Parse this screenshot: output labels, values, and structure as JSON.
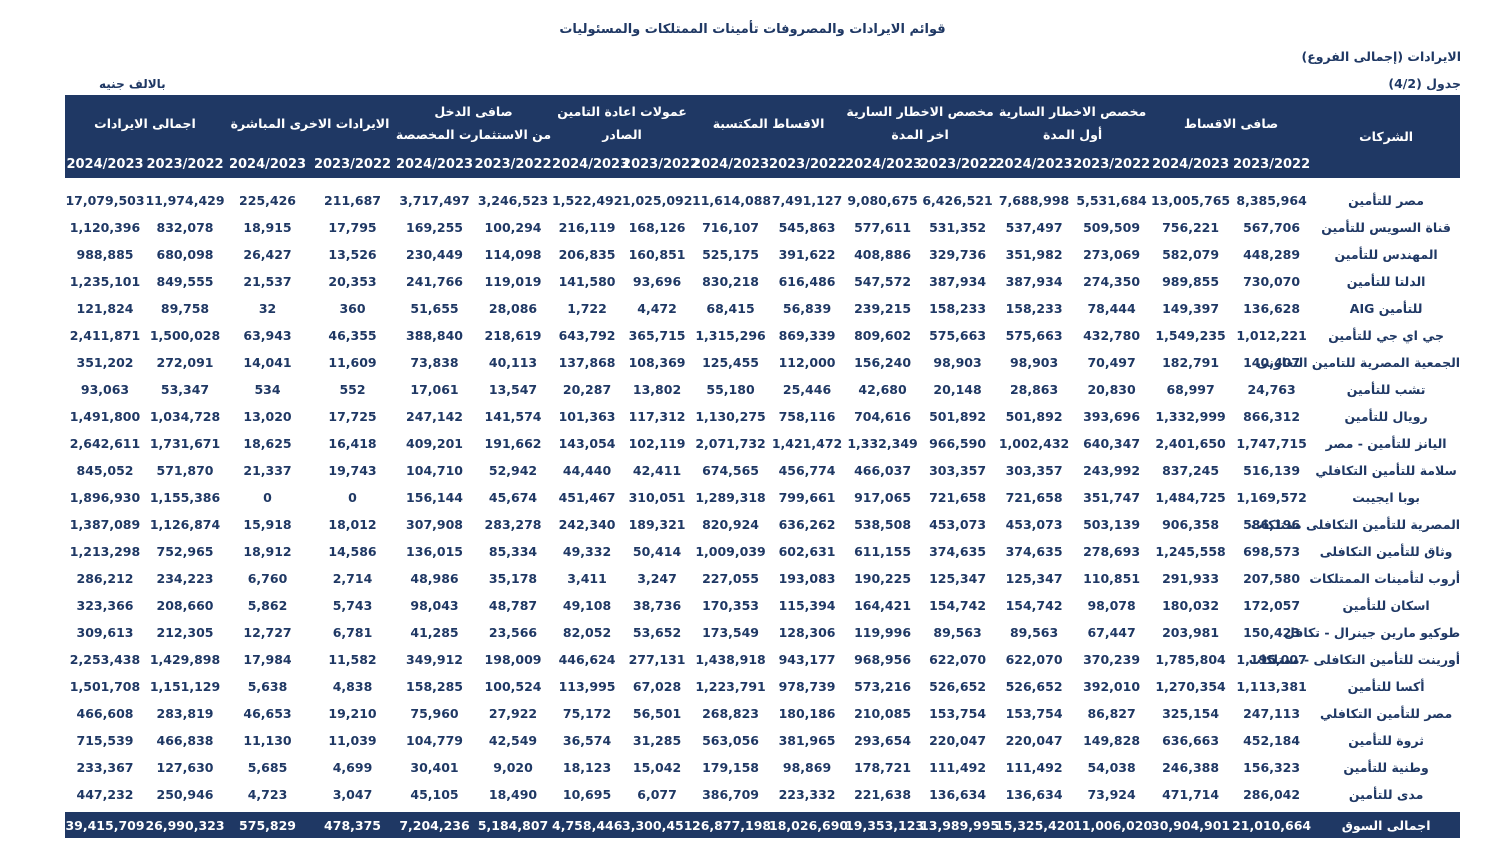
{
  "page": {
    "title": "قوائم الايرادات والمصروفات تأمينات الممتلكات والمسئوليات",
    "revenues_scope_label": "الايرادات (إجمالى الفروع)",
    "table_number_label": "جدول (4/2)",
    "unit_label": "بالالف جنيه"
  },
  "colors": {
    "header_bg": "#1F3864",
    "text": "#1F3864"
  },
  "table": {
    "companies_header": "الشركات",
    "year_columns": [
      "2024/2023",
      "2023/2022"
    ],
    "column_groups": [
      {
        "label": "اجمالى الايرادات",
        "label2": ""
      },
      {
        "label": "الايرادات الاخرى المباشرة",
        "label2": ""
      },
      {
        "label": "صافى الدخل",
        "label2": "من الاستثمارت المخصصة"
      },
      {
        "label": "عمولات اعادة التامين الصادر",
        "label2": ""
      },
      {
        "label": "الاقساط المكتسبة",
        "label2": ""
      },
      {
        "label": "مخصص الاخطار السارية",
        "label2": "اخر المدة"
      },
      {
        "label": "مخصص الاخطار السارية",
        "label2": "أول المدة"
      },
      {
        "label": "صافى الاقساط",
        "label2": ""
      }
    ],
    "rows": [
      {
        "name": "مصر للتأمين",
        "values": [
          "17,079,503",
          "11,974,429",
          "225,426",
          "211,687",
          "3,717,497",
          "3,246,523",
          "1,522,492",
          "1,025,092",
          "11,614,088",
          "7,491,127",
          "9,080,675",
          "6,426,521",
          "7,688,998",
          "5,531,684",
          "13,005,765",
          "8,385,964"
        ]
      },
      {
        "name": "قناة السويس للتأمين",
        "values": [
          "1,120,396",
          "832,078",
          "18,915",
          "17,795",
          "169,255",
          "100,294",
          "216,119",
          "168,126",
          "716,107",
          "545,863",
          "577,611",
          "531,352",
          "537,497",
          "509,509",
          "756,221",
          "567,706"
        ]
      },
      {
        "name": "المهندس للتأمين",
        "values": [
          "988,885",
          "680,098",
          "26,427",
          "13,526",
          "230,449",
          "114,098",
          "206,835",
          "160,851",
          "525,175",
          "391,622",
          "408,886",
          "329,736",
          "351,982",
          "273,069",
          "582,079",
          "448,289"
        ]
      },
      {
        "name": "الدلتا للتأمين",
        "values": [
          "1,235,101",
          "849,555",
          "21,537",
          "20,353",
          "241,766",
          "119,019",
          "141,580",
          "93,696",
          "830,218",
          "616,486",
          "547,572",
          "387,934",
          "387,934",
          "274,350",
          "989,855",
          "730,070"
        ]
      },
      {
        "name": "AIG للتأمين",
        "values": [
          "121,824",
          "89,758",
          "32",
          "360",
          "51,655",
          "28,086",
          "1,722",
          "4,472",
          "68,415",
          "56,839",
          "239,215",
          "158,233",
          "158,233",
          "78,444",
          "149,397",
          "136,628"
        ]
      },
      {
        "name": "جي اي جي للتأمين",
        "values": [
          "2,411,871",
          "1,500,028",
          "63,943",
          "46,355",
          "388,840",
          "218,619",
          "643,792",
          "365,715",
          "1,315,296",
          "869,339",
          "809,602",
          "575,663",
          "575,663",
          "432,780",
          "1,549,235",
          "1,012,221"
        ]
      },
      {
        "name": "الجمعية المصرية للتامين التعاونى",
        "values": [
          "351,202",
          "272,091",
          "14,041",
          "11,609",
          "73,838",
          "40,113",
          "137,868",
          "108,369",
          "125,455",
          "112,000",
          "156,240",
          "98,903",
          "98,903",
          "70,497",
          "182,791",
          "140,407"
        ]
      },
      {
        "name": "تشب للتأمين",
        "values": [
          "93,063",
          "53,347",
          "534",
          "552",
          "17,061",
          "13,547",
          "20,287",
          "13,802",
          "55,180",
          "25,446",
          "42,680",
          "20,148",
          "28,863",
          "20,830",
          "68,997",
          "24,763"
        ]
      },
      {
        "name": "رويال للتأمين",
        "values": [
          "1,491,800",
          "1,034,728",
          "13,020",
          "17,725",
          "247,142",
          "141,574",
          "101,363",
          "117,312",
          "1,130,275",
          "758,116",
          "704,616",
          "501,892",
          "501,892",
          "393,696",
          "1,332,999",
          "866,312"
        ]
      },
      {
        "name": "اليانز للتأمين - مصر",
        "values": [
          "2,642,611",
          "1,731,671",
          "18,625",
          "16,418",
          "409,201",
          "191,662",
          "143,054",
          "102,119",
          "2,071,732",
          "1,421,472",
          "1,332,349",
          "966,590",
          "1,002,432",
          "640,347",
          "2,401,650",
          "1,747,715"
        ]
      },
      {
        "name": "سلامة للتأمين التكافلي",
        "values": [
          "845,052",
          "571,870",
          "21,337",
          "19,743",
          "104,710",
          "52,942",
          "44,440",
          "42,411",
          "674,565",
          "456,774",
          "466,037",
          "303,357",
          "303,357",
          "243,992",
          "837,245",
          "516,139"
        ]
      },
      {
        "name": "بوبا ايجيبت",
        "values": [
          "1,896,930",
          "1,155,386",
          "0",
          "0",
          "156,144",
          "45,674",
          "451,467",
          "310,051",
          "1,289,318",
          "799,661",
          "917,065",
          "721,658",
          "721,658",
          "351,747",
          "1,484,725",
          "1,169,572"
        ]
      },
      {
        "name": "المصرية للتأمين التكافلى ممتلكات",
        "values": [
          "1,387,089",
          "1,126,874",
          "15,918",
          "18,012",
          "307,908",
          "283,278",
          "242,340",
          "189,321",
          "820,924",
          "636,262",
          "538,508",
          "453,073",
          "453,073",
          "503,139",
          "906,358",
          "586,196"
        ]
      },
      {
        "name": "وثاق للتأمين التكافلى",
        "values": [
          "1,213,298",
          "752,965",
          "18,912",
          "14,586",
          "136,015",
          "85,334",
          "49,332",
          "50,414",
          "1,009,039",
          "602,631",
          "611,155",
          "374,635",
          "374,635",
          "278,693",
          "1,245,558",
          "698,573"
        ]
      },
      {
        "name": "أروب لتأمينات الممتلكات",
        "values": [
          "286,212",
          "234,223",
          "6,760",
          "2,714",
          "48,986",
          "35,178",
          "3,411",
          "3,247",
          "227,055",
          "193,083",
          "190,225",
          "125,347",
          "125,347",
          "110,851",
          "291,933",
          "207,580"
        ]
      },
      {
        "name": "اسكان للتأمين",
        "values": [
          "323,366",
          "208,660",
          "5,862",
          "5,743",
          "98,043",
          "48,787",
          "49,108",
          "38,736",
          "170,353",
          "115,394",
          "164,421",
          "154,742",
          "154,742",
          "98,078",
          "180,032",
          "172,057"
        ]
      },
      {
        "name": "طوكيو مارين جينرال - تكافل",
        "values": [
          "309,613",
          "212,305",
          "12,727",
          "6,781",
          "41,285",
          "23,566",
          "82,052",
          "53,652",
          "173,549",
          "128,306",
          "119,996",
          "89,563",
          "89,563",
          "67,447",
          "203,981",
          "150,423"
        ]
      },
      {
        "name": "أورينت للتأمين التكافلى - ممتلكات",
        "values": [
          "2,253,438",
          "1,429,898",
          "17,984",
          "11,582",
          "349,912",
          "198,009",
          "446,624",
          "277,131",
          "1,438,918",
          "943,177",
          "968,956",
          "622,070",
          "622,070",
          "370,239",
          "1,785,804",
          "1,195,007"
        ]
      },
      {
        "name": "أكسا للتأمين",
        "values": [
          "1,501,708",
          "1,151,129",
          "5,638",
          "4,838",
          "158,285",
          "100,524",
          "113,995",
          "67,028",
          "1,223,791",
          "978,739",
          "573,216",
          "526,652",
          "526,652",
          "392,010",
          "1,270,354",
          "1,113,381"
        ]
      },
      {
        "name": "مصر للتأمين التكافلي",
        "values": [
          "466,608",
          "283,819",
          "46,653",
          "19,210",
          "75,960",
          "27,922",
          "75,172",
          "56,501",
          "268,823",
          "180,186",
          "210,085",
          "153,754",
          "153,754",
          "86,827",
          "325,154",
          "247,113"
        ]
      },
      {
        "name": "ثروة للتأمين",
        "values": [
          "715,539",
          "466,838",
          "11,130",
          "11,039",
          "104,779",
          "42,549",
          "36,574",
          "31,285",
          "563,056",
          "381,965",
          "293,654",
          "220,047",
          "220,047",
          "149,828",
          "636,663",
          "452,184"
        ]
      },
      {
        "name": "وطنية للتأمين",
        "values": [
          "233,367",
          "127,630",
          "5,685",
          "4,699",
          "30,401",
          "9,020",
          "18,123",
          "15,042",
          "179,158",
          "98,869",
          "178,721",
          "111,492",
          "111,492",
          "54,038",
          "246,388",
          "156,323"
        ]
      },
      {
        "name": "مدى للتأمين",
        "values": [
          "447,232",
          "250,946",
          "4,723",
          "3,047",
          "45,105",
          "18,490",
          "10,695",
          "6,077",
          "386,709",
          "223,332",
          "221,638",
          "136,634",
          "136,634",
          "73,924",
          "471,714",
          "286,042"
        ]
      }
    ],
    "totals": {
      "name": "اجمالى السوق",
      "values": [
        "39,415,709",
        "26,990,323",
        "575,829",
        "478,375",
        "7,204,236",
        "5,184,807",
        "4,758,446",
        "3,300,451",
        "26,877,198",
        "18,026,690",
        "19,353,123",
        "13,989,995",
        "15,325,420",
        "11,006,020",
        "30,904,901",
        "21,010,664"
      ]
    }
  }
}
